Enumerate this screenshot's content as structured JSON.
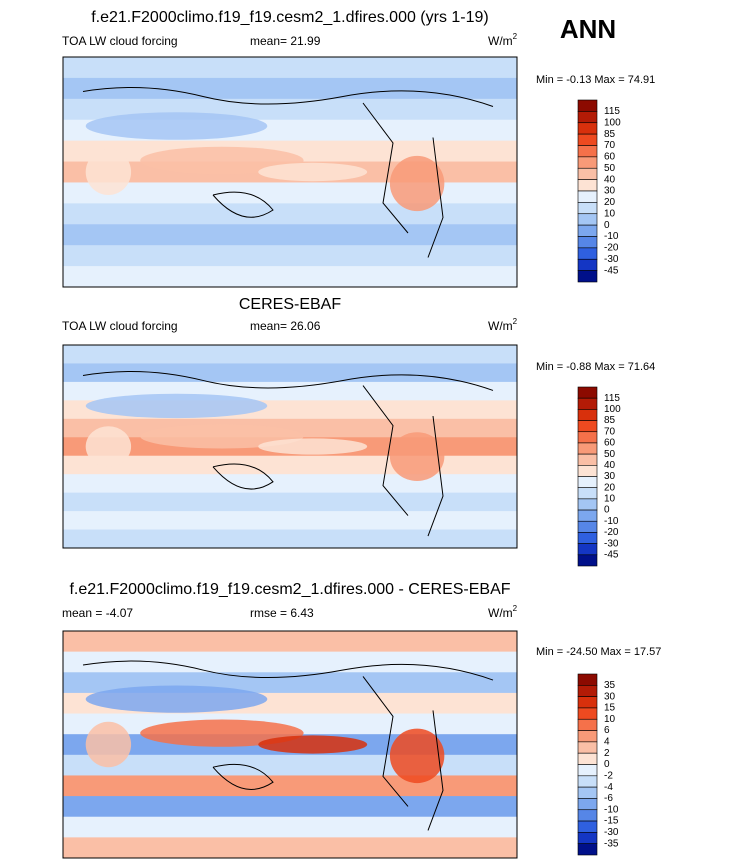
{
  "title": "ANN",
  "panels": [
    {
      "title": "f.e21.F2000climo.f19_f19.cesm2_1.dfires.000 (yrs 1-19)",
      "left": "TOA LW cloud forcing",
      "center": "mean=  21.99",
      "units": "W/m",
      "units_exp": "2",
      "minmax": "Min =  -0.13 Max =  74.91",
      "levels": [
        115,
        100,
        85,
        70,
        60,
        50,
        40,
        30,
        20,
        10,
        0,
        -10,
        -20,
        -30,
        -45
      ]
    },
    {
      "title": "CERES-EBAF",
      "left": "TOA LW cloud forcing",
      "center": "mean=  26.06",
      "units": "W/m",
      "units_exp": "2",
      "minmax": "Min =  -0.88 Max =  71.64",
      "levels": [
        115,
        100,
        85,
        70,
        60,
        50,
        40,
        30,
        20,
        10,
        0,
        -10,
        -20,
        -30,
        -45
      ]
    },
    {
      "title": "f.e21.F2000climo.f19_f19.cesm2_1.dfires.000 - CERES-EBAF",
      "left": "mean =  -4.07",
      "center": "rmse =   6.43",
      "units": "W/m",
      "units_exp": "2",
      "minmax": "Min = -24.50 Max =  17.57",
      "levels": [
        35,
        30,
        15,
        10,
        6,
        4,
        2,
        0,
        -2,
        -4,
        -6,
        -10,
        -15,
        -30,
        -35
      ]
    }
  ]
}
